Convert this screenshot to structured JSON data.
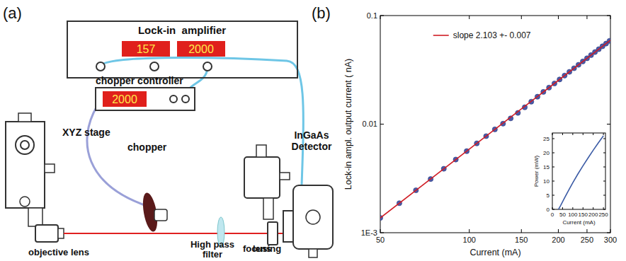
{
  "panel_labels": [
    "(a)",
    "(b)"
  ],
  "diagram": {
    "lock_in": {
      "title": "Lock-in  amplifier",
      "displays": [
        "157",
        "2000"
      ]
    },
    "chopper_controller": {
      "title": "chopper controller",
      "display": "2000"
    },
    "labels": {
      "xyz_stage": "XYZ stage",
      "chopper": "chopper",
      "objective_lens": "objective lens",
      "filter": "High pass filter",
      "focusing_lens": "focusing lens",
      "detector": "InGaAs Detector"
    }
  },
  "chart_data": [
    {
      "type": "scatter",
      "xlabel": "Current (mA)",
      "ylabel": "Lock-in ampl. output current ( nA)",
      "log": true,
      "grid": false,
      "legend": "top-left",
      "xlim": [
        50,
        300
      ],
      "ylim": [
        0.001,
        0.1
      ],
      "xticks": [
        50,
        100,
        150,
        200,
        250,
        300
      ],
      "yticks": [
        {
          "value": 0.001,
          "label": "1E-3"
        },
        0.01,
        0.1
      ],
      "series": [
        {
          "type": "scatter",
          "color": "#4a5aa8",
          "marker": "circle",
          "x": [
            50,
            58,
            66,
            74,
            82,
            90,
            98,
            106,
            114,
            122,
            130,
            138,
            146,
            154,
            162,
            170,
            178,
            186,
            194,
            202,
            210,
            218,
            226,
            234,
            242,
            250,
            258,
            266,
            274,
            282,
            290,
            298
          ],
          "values": [
            0.00137,
            0.00187,
            0.00246,
            0.00312,
            0.00388,
            0.00472,
            0.00564,
            0.00665,
            0.00775,
            0.00894,
            0.0101,
            0.0113,
            0.0127,
            0.0143,
            0.0161,
            0.0179,
            0.0198,
            0.0217,
            0.0237,
            0.0258,
            0.028,
            0.0303,
            0.0327,
            0.0352,
            0.0378,
            0.0404,
            0.0432,
            0.0461,
            0.049,
            0.0521,
            0.0552,
            0.0585
          ]
        },
        {
          "type": "line",
          "name": "slope 2.103 +- 0.007",
          "color": "#d01c24",
          "line_style": "solid",
          "x": [
            50,
            300
          ],
          "values": [
            0.00137,
            0.0593
          ]
        }
      ]
    },
    {
      "type": "line",
      "xlabel": "Current (mA)",
      "ylabel": "Power (mW)",
      "grid": false,
      "xlim": [
        0,
        260
      ],
      "ylim": [
        0,
        27
      ],
      "xticks": [
        0,
        50,
        100,
        150,
        200,
        250
      ],
      "yticks": [
        0,
        5,
        10,
        15,
        20,
        25
      ],
      "series": [
        {
          "type": "line",
          "color": "#3b5ba5",
          "line_style": "solid",
          "x": [
            30,
            40,
            60,
            80,
            100,
            125,
            150,
            175,
            200,
            225,
            250
          ],
          "values": [
            0,
            1.3,
            4.1,
            6.8,
            9.4,
            12.5,
            15.4,
            18.2,
            20.9,
            23.5,
            26.0
          ]
        }
      ]
    }
  ]
}
